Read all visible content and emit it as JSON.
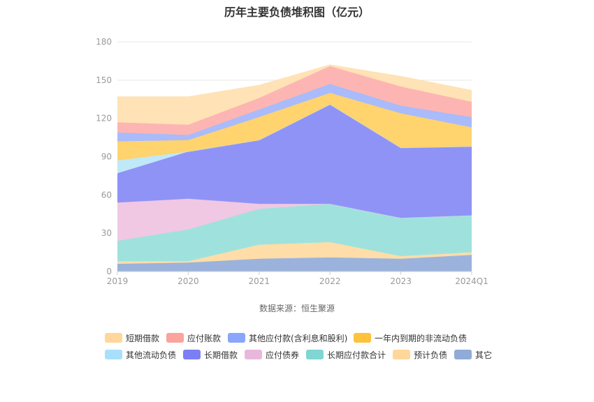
{
  "chart_data": {
    "type": "area",
    "stacked": true,
    "title": "历年主要负债堆积图（亿元）",
    "source": "数据来源：恒生聚源",
    "categories": [
      "2019",
      "2020",
      "2021",
      "2022",
      "2023",
      "2024Q1"
    ],
    "yticks": [
      "0",
      "30",
      "60",
      "90",
      "120",
      "150",
      "180"
    ],
    "ylim": [
      0,
      180
    ],
    "grid": true,
    "legend_position": "bottom",
    "series": [
      {
        "name": "其它",
        "color": "#9bb3dc",
        "values": [
          6,
          7,
          10,
          11,
          10,
          13
        ]
      },
      {
        "name": "预计负债",
        "color": "#ffdda8",
        "values": [
          2,
          1,
          11,
          12,
          2,
          2
        ]
      },
      {
        "name": "长期应付款合计",
        "color": "#9fe2dd",
        "values": [
          16,
          25,
          28,
          30,
          30,
          29
        ]
      },
      {
        "name": "应付债券",
        "color": "#f0c8e3",
        "values": [
          30,
          24,
          4,
          0,
          0,
          0
        ]
      },
      {
        "name": "长期借款",
        "color": "#8f93f6",
        "values": [
          23,
          37,
          50,
          78,
          55,
          54
        ]
      },
      {
        "name": "其他流动负债",
        "color": "#bfe8f8",
        "values": [
          10,
          0,
          0,
          0,
          0,
          0
        ]
      },
      {
        "name": "一年内到期的非流动负债",
        "color": "#ffd36e",
        "values": [
          15,
          9,
          18,
          9,
          27,
          15
        ]
      },
      {
        "name": "其他应付款(含利息和股利)",
        "color": "#a9bbfa",
        "values": [
          7,
          4,
          6,
          7,
          6,
          8
        ]
      },
      {
        "name": "应付账款",
        "color": "#fdb5b3",
        "values": [
          8,
          8,
          9,
          14,
          15,
          12
        ]
      },
      {
        "name": "短期借款",
        "color": "#ffe2b5",
        "values": [
          20,
          22,
          10,
          1,
          8,
          9
        ]
      }
    ],
    "legend_order": [
      "短期借款",
      "应付账款",
      "其他应付款(含利息和股利)",
      "一年内到期的非流动负债",
      "其他流动负债",
      "长期借款",
      "应付债券",
      "长期应付款合计",
      "预计负债",
      "其它"
    ],
    "legend_colors": {
      "短期借款": "#ffd79a",
      "应付账款": "#fba39d",
      "其他应付款(含利息和股利)": "#89a6fb",
      "一年内到期的非流动负债": "#ffc23d",
      "其他流动负债": "#a8e0fb",
      "长期借款": "#7b7ff3",
      "应付债券": "#e8b8dc",
      "长期应付款合计": "#7fd6d2",
      "预计负债": "#ffd79a",
      "其它": "#8fabd8"
    }
  }
}
